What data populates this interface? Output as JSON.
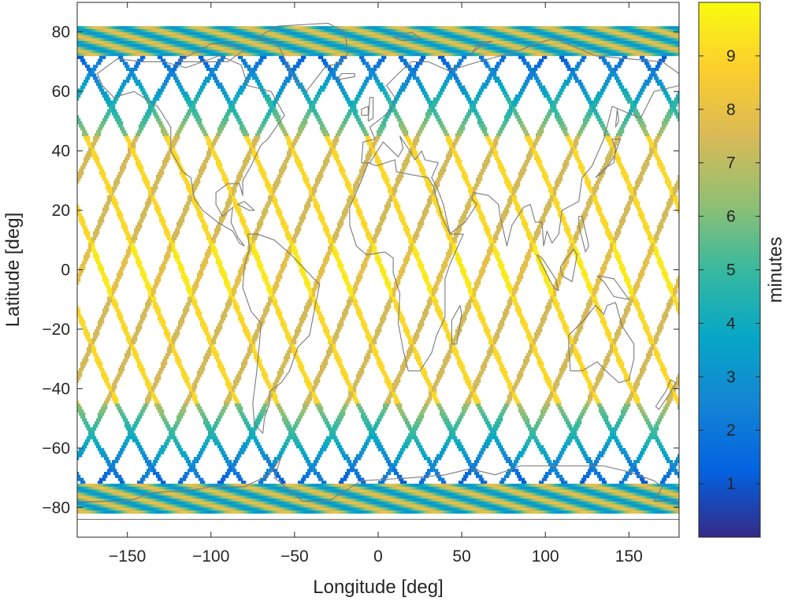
{
  "chart_data": {
    "type": "heatmap",
    "xlabel": "Longitude [deg]",
    "ylabel": "Latitude [deg]",
    "xlim": [
      -180,
      180
    ],
    "ylim": [
      -90,
      90
    ],
    "xticks": [
      -150,
      -100,
      -50,
      0,
      50,
      100,
      150
    ],
    "yticks": [
      -80,
      -60,
      -40,
      -20,
      0,
      20,
      40,
      60,
      80
    ],
    "grid": false,
    "coastlines": true,
    "lat_coverage": [
      -82,
      82
    ],
    "orbit": {
      "ascending_node_longitudes": [
        -178,
        -154,
        -130,
        -106,
        -82,
        -58,
        -34,
        -10,
        14,
        38,
        62,
        86,
        110,
        134,
        158
      ],
      "max_latitude": 82
    },
    "colorbar": {
      "label": "minutes",
      "range": [
        0,
        10
      ],
      "ticks": [
        1,
        2,
        3,
        4,
        5,
        6,
        7,
        8,
        9
      ],
      "colormap": "parula",
      "colors": [
        "#352a87",
        "#0363e1",
        "#1485d4",
        "#06a7c6",
        "#38b99e",
        "#92bf73",
        "#d9ba56",
        "#fcce2e",
        "#f9fb0e"
      ]
    }
  }
}
